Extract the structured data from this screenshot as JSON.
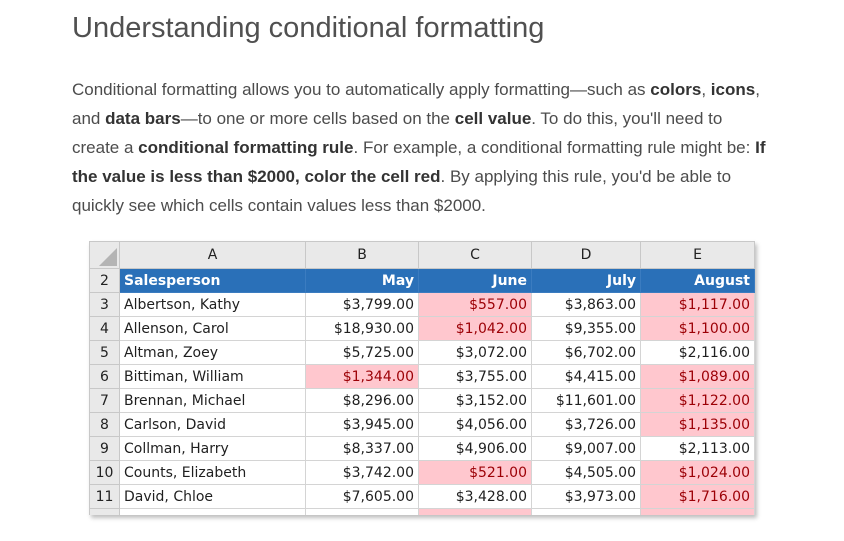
{
  "title": "Understanding conditional formatting",
  "intro": [
    {
      "text": "Conditional formatting allows you to automatically apply formatting—such as ",
      "bold": false
    },
    {
      "text": "colors",
      "bold": true
    },
    {
      "text": ", ",
      "bold": false
    },
    {
      "text": "icons",
      "bold": true
    },
    {
      "text": ", and ",
      "bold": false
    },
    {
      "text": "data bars",
      "bold": true
    },
    {
      "text": "—to one or more cells based on the ",
      "bold": false
    },
    {
      "text": "cell value",
      "bold": true
    },
    {
      "text": ". To do this, you'll need to create a ",
      "bold": false
    },
    {
      "text": "conditional formatting rule",
      "bold": true
    },
    {
      "text": ". For example, a conditional formatting rule might be: ",
      "bold": false
    },
    {
      "text": "If the value is less than $2000, color the cell red",
      "bold": true
    },
    {
      "text": ". By applying this rule, you'd be able to quickly see which cells contain values less than $2000.",
      "bold": false
    }
  ],
  "sheet": {
    "column_letters": [
      "A",
      "B",
      "C",
      "D",
      "E"
    ],
    "header_row_number": "2",
    "headers": [
      "Salesperson",
      "May",
      "June",
      "July",
      "August"
    ],
    "highlight_color": "#ffc7ce",
    "highlight_text_color": "#9c0006",
    "header_fill_color": "#2a70b8",
    "rows": [
      {
        "num": "3",
        "name": "Albertson, Kathy",
        "values": [
          "$3,799.00",
          "$557.00",
          "$3,863.00",
          "$1,117.00"
        ],
        "highlight": [
          false,
          true,
          false,
          true
        ]
      },
      {
        "num": "4",
        "name": "Allenson, Carol",
        "values": [
          "$18,930.00",
          "$1,042.00",
          "$9,355.00",
          "$1,100.00"
        ],
        "highlight": [
          false,
          true,
          false,
          true
        ]
      },
      {
        "num": "5",
        "name": "Altman, Zoey",
        "values": [
          "$5,725.00",
          "$3,072.00",
          "$6,702.00",
          "$2,116.00"
        ],
        "highlight": [
          false,
          false,
          false,
          false
        ]
      },
      {
        "num": "6",
        "name": "Bittiman, William",
        "values": [
          "$1,344.00",
          "$3,755.00",
          "$4,415.00",
          "$1,089.00"
        ],
        "highlight": [
          true,
          false,
          false,
          true
        ]
      },
      {
        "num": "7",
        "name": "Brennan, Michael",
        "values": [
          "$8,296.00",
          "$3,152.00",
          "$11,601.00",
          "$1,122.00"
        ],
        "highlight": [
          false,
          false,
          false,
          true
        ]
      },
      {
        "num": "8",
        "name": "Carlson, David",
        "values": [
          "$3,945.00",
          "$4,056.00",
          "$3,726.00",
          "$1,135.00"
        ],
        "highlight": [
          false,
          false,
          false,
          true
        ]
      },
      {
        "num": "9",
        "name": "Collman, Harry",
        "values": [
          "$8,337.00",
          "$4,906.00",
          "$9,007.00",
          "$2,113.00"
        ],
        "highlight": [
          false,
          false,
          false,
          false
        ]
      },
      {
        "num": "10",
        "name": "Counts, Elizabeth",
        "values": [
          "$3,742.00",
          "$521.00",
          "$4,505.00",
          "$1,024.00"
        ],
        "highlight": [
          false,
          true,
          false,
          true
        ]
      },
      {
        "num": "11",
        "name": "David, Chloe",
        "values": [
          "$7,605.00",
          "$3,428.00",
          "$3,973.00",
          "$1,716.00"
        ],
        "highlight": [
          false,
          false,
          false,
          true
        ]
      }
    ],
    "partial_row_highlight": [
      false,
      true,
      false,
      true
    ]
  }
}
